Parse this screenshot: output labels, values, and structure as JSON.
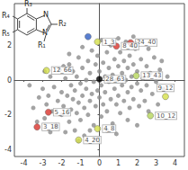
{
  "chart_data": {
    "type": "scatter",
    "xlim": [
      -4.5,
      4.5
    ],
    "xticks": [
      -4,
      -3,
      -2,
      -1,
      0,
      1,
      2,
      3,
      4
    ],
    "ylim": [
      -4.4,
      4.4
    ],
    "yticks": [
      -4,
      -2,
      0,
      2
    ],
    "grid": false,
    "series": [
      {
        "color": "#8c8c8c",
        "marker": "circle",
        "x": [
          -3.5,
          -3.2,
          -3.0,
          -2.9,
          -2.8,
          -2.7,
          -2.6,
          -2.5,
          -2.4,
          -2.3,
          -2.2,
          -2.1,
          -2.0,
          -2.0,
          -1.9,
          -1.8,
          -1.8,
          -1.7,
          -1.6,
          -1.6,
          -1.5,
          -1.5,
          -1.4,
          -1.4,
          -1.3,
          -1.3,
          -1.2,
          -1.2,
          -1.1,
          -1.1,
          -1.0,
          -1.0,
          -0.9,
          -0.9,
          -0.8,
          -0.8,
          -0.7,
          -0.7,
          -0.6,
          -0.6,
          -0.5,
          -0.5,
          -0.4,
          -0.4,
          -0.3,
          -0.3,
          -0.2,
          -0.2,
          -0.1,
          -0.1,
          0.0,
          0.0,
          0.1,
          0.1,
          0.2,
          0.2,
          0.3,
          0.3,
          0.4,
          0.4,
          0.5,
          0.5,
          0.6,
          0.6,
          0.7,
          0.7,
          0.8,
          0.8,
          0.9,
          0.9,
          1.0,
          1.0,
          1.1,
          1.1,
          1.2,
          1.2,
          1.3,
          1.3,
          1.4,
          1.4,
          1.5,
          1.5,
          1.6,
          1.6,
          1.7,
          1.7,
          1.8,
          1.8,
          1.9,
          2.0,
          2.0,
          2.1,
          2.2,
          2.2,
          2.3,
          2.4,
          2.5,
          2.5,
          2.6,
          2.7,
          2.8,
          2.9,
          3.0,
          3.1,
          3.2,
          3.4,
          3.6,
          -3.3,
          -2.6,
          -1.9,
          -0.2,
          0.4,
          1.5,
          2.0,
          -0.9,
          0.1,
          1.0,
          -1.6,
          2.6,
          3.3,
          -3.7,
          -2.9,
          -0.5,
          0.9,
          -1.1,
          1.8
        ],
        "y": [
          -1.6,
          -1.0,
          -0.5,
          -2.2,
          -1.4,
          -0.9,
          0.2,
          -1.8,
          -0.4,
          -2.6,
          -1.2,
          0.6,
          -0.7,
          -2.0,
          -1.5,
          0.1,
          -3.0,
          -0.9,
          -2.4,
          0.9,
          -0.3,
          -1.7,
          -1.1,
          0.5,
          -2.9,
          -0.6,
          -1.9,
          0.2,
          -1.3,
          1.3,
          -0.2,
          -2.3,
          -0.9,
          0.7,
          -1.6,
          -3.2,
          0.0,
          -0.5,
          1.1,
          -2.0,
          -1.2,
          0.4,
          -0.8,
          1.7,
          -2.6,
          -0.1,
          -1.5,
          0.9,
          -0.6,
          1.4,
          -1.0,
          0.5,
          -2.1,
          -0.3,
          1.0,
          -1.4,
          0.2,
          -0.7,
          1.6,
          -1.8,
          -0.1,
          0.7,
          -1.1,
          2.0,
          0.3,
          -2.5,
          -0.5,
          1.2,
          -1.4,
          0.0,
          0.8,
          -0.9,
          1.6,
          -1.9,
          0.4,
          -0.3,
          1.1,
          -1.2,
          0.0,
          2.2,
          -0.7,
          0.7,
          -1.6,
          1.4,
          0.2,
          -0.4,
          0.9,
          -1.1,
          1.8,
          -0.2,
          0.5,
          -1.5,
          1.2,
          -0.6,
          0.1,
          -1.2,
          0.8,
          -0.3,
          -1.8,
          0.4,
          -0.8,
          1.3,
          -0.1,
          -1.4,
          0.6,
          -0.5,
          0.2,
          -2.4,
          -3.0,
          0.8,
          -3.4,
          -2.9,
          -2.3,
          -2.6,
          1.9,
          2.3,
          2.4,
          1.5,
          1.8,
          1.1,
          -0.3,
          0.5,
          -2.9,
          -3.1,
          -3.5,
          2.5
        ]
      },
      {
        "marker": "circle",
        "x": [
          -0.6,
          0.0,
          -0.1,
          1.65,
          0.9,
          -2.8,
          1.95,
          3.5,
          2.7,
          -2.7,
          -3.3,
          -0.1,
          -1.1
        ],
        "y": [
          2.5,
          0.05,
          2.2,
          2.15,
          1.95,
          0.55,
          0.25,
          -0.95,
          -2.05,
          -1.85,
          -2.7,
          -2.8,
          -3.45
        ],
        "labels": [
          null,
          "28_63",
          "1_3",
          "24_40",
          "8_40",
          "12_66",
          "13_43",
          "9_12",
          "10_12",
          "5_16",
          "3_18",
          "4_8",
          "4_20"
        ],
        "colors": [
          "#2f5fc4",
          "#000000",
          "#d4e04a",
          "#d9322b",
          "#d9322b",
          "#d4e04a",
          "#b5d65a",
          "#d4e04a",
          "#b5d65a",
          "#d9322b",
          "#d9322b",
          "#d4e04a",
          "#d4e04a"
        ]
      }
    ]
  },
  "structure": {
    "labels": [
      "R₃",
      "R₂",
      "R₄",
      "R₅",
      "R₁",
      "N",
      "N"
    ]
  }
}
